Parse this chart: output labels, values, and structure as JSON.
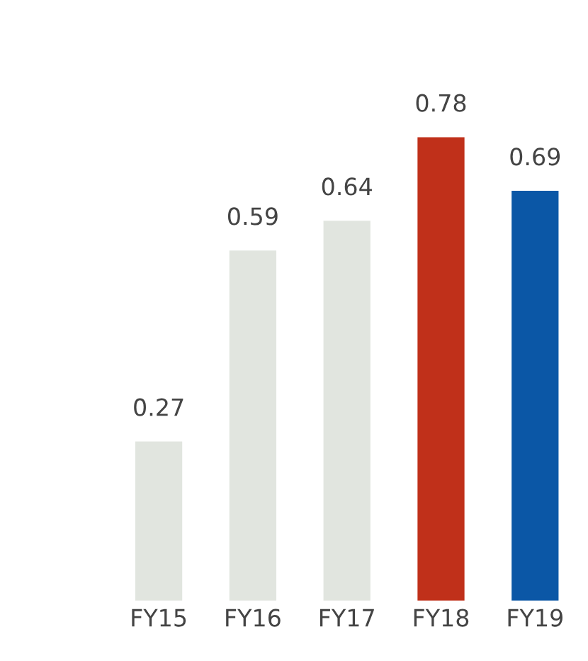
{
  "chart_data": {
    "type": "bar",
    "categories": [
      "FY15",
      "FY16",
      "FY17",
      "FY18",
      "FY19"
    ],
    "values": [
      0.27,
      0.59,
      0.64,
      0.78,
      0.69
    ],
    "colors": [
      "#e1e5df",
      "#e1e5df",
      "#e1e5df",
      "#c0301a",
      "#0b57a6"
    ],
    "data_labels": true,
    "grid": false,
    "legend": false
  }
}
